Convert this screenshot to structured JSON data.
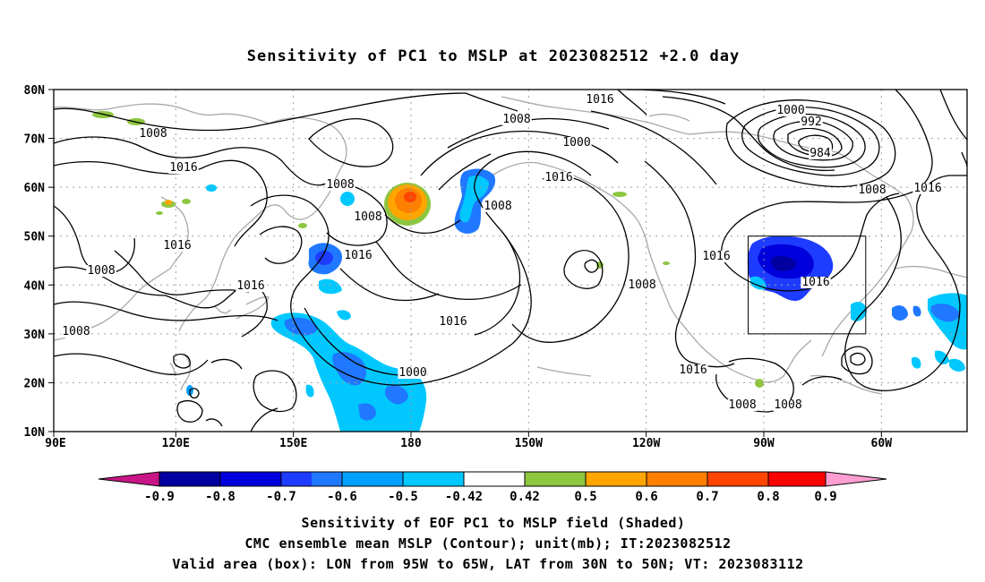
{
  "title": "Sensitivity of PC1 to MSLP at 2023082512 +2.0 day",
  "axes": {
    "lat_labels": [
      "80N",
      "70N",
      "60N",
      "50N",
      "40N",
      "30N",
      "20N",
      "10N"
    ],
    "lon_labels": [
      "90E",
      "120E",
      "150E",
      "180",
      "150W",
      "120W",
      "90W",
      "60W"
    ]
  },
  "contour_labels": [
    {
      "id": "c1",
      "text": "1016"
    },
    {
      "id": "c2",
      "text": "1008"
    },
    {
      "id": "c3",
      "text": "1000"
    },
    {
      "id": "c4",
      "text": "1008"
    },
    {
      "id": "c5",
      "text": "1016"
    },
    {
      "id": "c6",
      "text": "1000"
    },
    {
      "id": "c7",
      "text": "992"
    },
    {
      "id": "c8",
      "text": "984"
    },
    {
      "id": "c9",
      "text": "1008"
    },
    {
      "id": "c10",
      "text": "1016"
    },
    {
      "id": "c11",
      "text": "1008"
    },
    {
      "id": "c12",
      "text": "1016"
    },
    {
      "id": "c13",
      "text": "1008"
    },
    {
      "id": "c14",
      "text": "1016"
    },
    {
      "id": "c15",
      "text": "1016"
    },
    {
      "id": "c16",
      "text": "1008"
    },
    {
      "id": "c17",
      "text": "1008"
    },
    {
      "id": "c18",
      "text": "1016"
    },
    {
      "id": "c19",
      "text": "1016"
    },
    {
      "id": "c20",
      "text": "1008"
    },
    {
      "id": "c21",
      "text": "1016"
    },
    {
      "id": "c22",
      "text": "1016"
    },
    {
      "id": "c23",
      "text": "1008"
    },
    {
      "id": "c24",
      "text": "1000"
    },
    {
      "id": "c25",
      "text": "1016"
    },
    {
      "id": "c26",
      "text": "1008"
    },
    {
      "id": "c27",
      "text": "1008"
    },
    {
      "id": "c28",
      "text": "1008"
    }
  ],
  "colorbar": {
    "labels": [
      "-0.9",
      "-0.8",
      "-0.7",
      "-0.6",
      "-0.5",
      "-0.42",
      "0.42",
      "0.5",
      "0.6",
      "0.7",
      "0.8",
      "0.9"
    ],
    "colors": [
      "#c71585",
      "#0000a0",
      "#0000dc",
      "#1e3cff",
      "#1f78ff",
      "#00a0ff",
      "#00c8ff",
      "#ffffff",
      "#8dc63f",
      "#ffa500",
      "#ff7f00",
      "#ff4500",
      "#ff0000",
      "#ff9ed2"
    ]
  },
  "caption": {
    "line1": "Sensitivity of EOF PC1 to MSLP field (Shaded)",
    "line2": "CMC ensemble mean MSLP (Contour); unit(mb); IT:2023082512",
    "line3": "Valid area (box): LON from 95W to 65W, LAT from 30N to 50N; VT: 2023083112"
  }
}
